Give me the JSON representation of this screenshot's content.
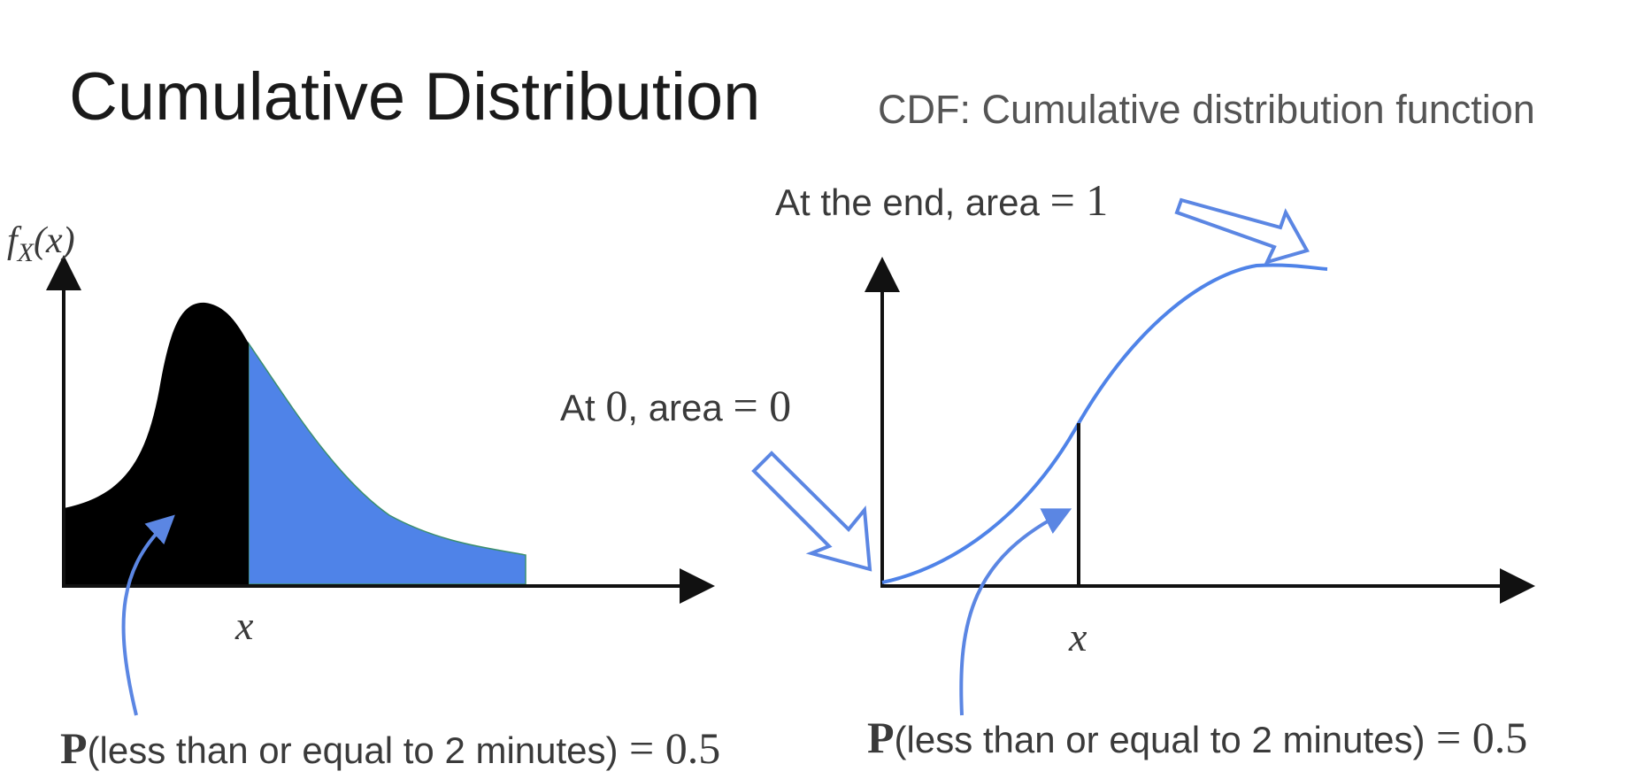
{
  "title": "Cumulative Distribution",
  "subtitle": "CDF: Cumulative distribution function",
  "pdf_panel": {
    "y_axis_label": {
      "f": "f",
      "sub": "X",
      "arg": "(x)"
    },
    "x_marker_label": "x",
    "probability_label": {
      "bold": "P",
      "text": "(less than or equal to 2 minutes)",
      "eq": " = 0.5"
    }
  },
  "cdf_panel": {
    "end_annotation": {
      "text": "At the end, area ",
      "math": "= 1"
    },
    "start_annotation": {
      "text_a": "At ",
      "math_a": "0",
      "text_b": ", area ",
      "math_b": "= 0"
    },
    "x_marker_label": "x",
    "probability_label": {
      "bold": "P",
      "text": "(less than or equal to 2 minutes)",
      "eq": " = 0.5"
    }
  },
  "colors": {
    "accent_blue": "#4f83e8",
    "arrow_blue": "#5b86e3",
    "fill_black": "#000000",
    "axis": "#111111",
    "text": "#3a3a3a"
  }
}
